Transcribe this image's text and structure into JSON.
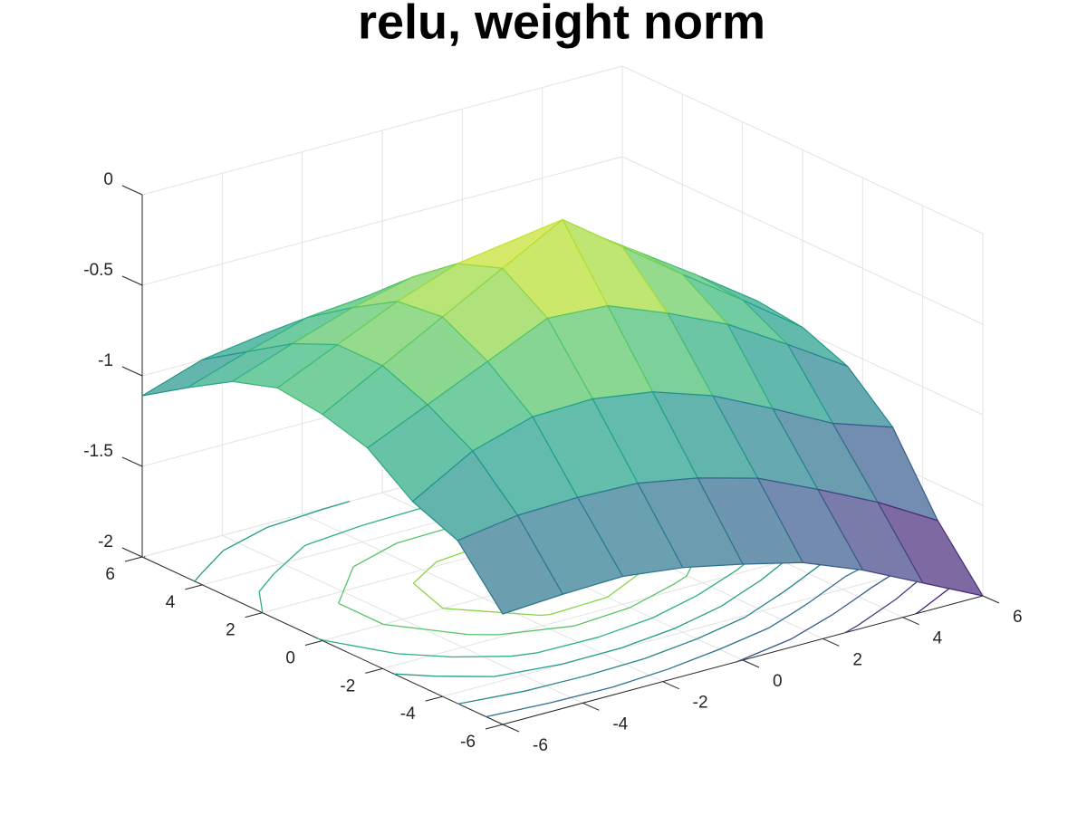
{
  "chart_data": {
    "type": "mesh",
    "title": "relu, weight norm",
    "x": [
      -6,
      -4.5,
      -3,
      -1.5,
      0,
      1.5,
      3,
      4.5,
      6
    ],
    "y": [
      -6,
      -4.5,
      -3,
      -1.5,
      0,
      1.5,
      3,
      4.5,
      6
    ],
    "z": [
      [
        -1.39,
        -1.37,
        -1.36,
        -1.4,
        -1.47,
        -1.55,
        -1.68,
        -1.84,
        -2.0
      ],
      [
        -1.1,
        -1.05,
        -1.04,
        -1.05,
        -1.11,
        -1.2,
        -1.35,
        -1.51,
        -1.7
      ],
      [
        -1.0,
        -0.81,
        -0.71,
        -0.7,
        -0.75,
        -0.86,
        -1.02,
        -1.19,
        -1.3
      ],
      [
        -0.82,
        -0.67,
        -0.52,
        -0.37,
        -0.39,
        -0.52,
        -0.67,
        -0.87,
        -1.08
      ],
      [
        -0.75,
        -0.57,
        -0.39,
        -0.21,
        -0.03,
        -0.27,
        -0.51,
        -0.74,
        -0.98
      ],
      [
        -0.72,
        -0.57,
        -0.42,
        -0.3,
        -0.25,
        -0.28,
        -0.5,
        -0.72,
        -0.95
      ],
      [
        -0.8,
        -0.68,
        -0.57,
        -0.49,
        -0.48,
        -0.49,
        -0.53,
        -0.74,
        -0.96
      ],
      [
        -0.95,
        -0.84,
        -0.74,
        -0.71,
        -0.7,
        -0.71,
        -0.74,
        -0.77,
        -0.98
      ],
      [
        -1.11,
        -1.0,
        -0.95,
        -0.93,
        -0.92,
        -0.93,
        -0.95,
        -0.98,
        -1.02
      ]
    ],
    "xlim": [
      -6,
      6
    ],
    "ylim": [
      -6,
      6
    ],
    "zlim": [
      -2,
      0
    ],
    "xticks": [
      -6,
      -4,
      -2,
      0,
      2,
      4,
      6
    ],
    "yticks": [
      -6,
      -4,
      -2,
      0,
      2,
      4,
      6
    ],
    "zticks": [
      -2,
      -1.5,
      -1,
      -0.5,
      0
    ],
    "grid": true,
    "colormap": "viridis",
    "contour": true
  }
}
